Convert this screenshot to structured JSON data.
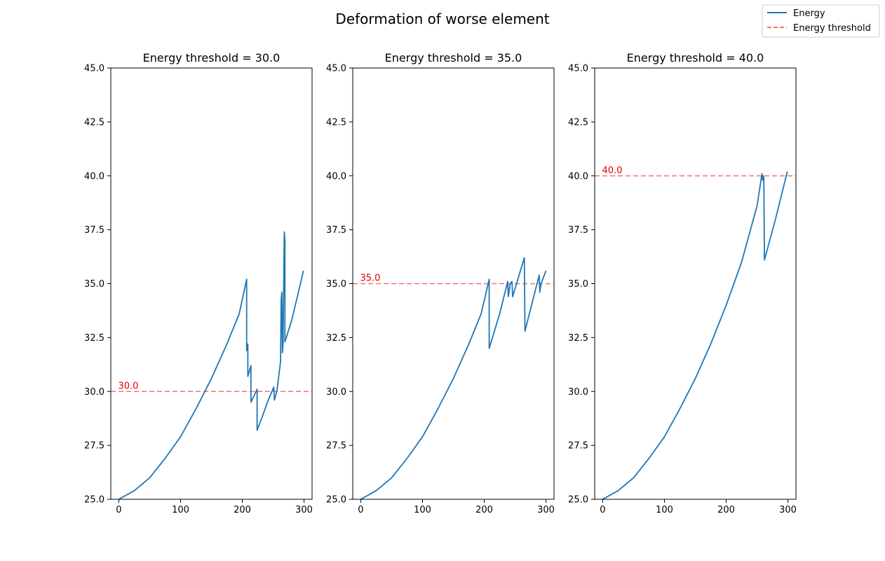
{
  "suptitle": "Deformation of worse element",
  "legend": {
    "placement": "top-right",
    "entries": [
      {
        "label": "Energy",
        "color": "#1f77b4",
        "style": "solid"
      },
      {
        "label": "Energy threshold",
        "color": "#ff6f6f",
        "style": "dashed"
      }
    ]
  },
  "chart_data": [
    {
      "type": "line",
      "title": "Energy threshold = 30.0",
      "xlim": [
        -13,
        313
      ],
      "ylim": [
        25.0,
        45.0
      ],
      "xticks": [
        0,
        100,
        200,
        300
      ],
      "yticks": [
        25.0,
        27.5,
        30.0,
        32.5,
        35.0,
        37.5,
        40.0,
        42.5,
        45.0
      ],
      "grid": false,
      "threshold": {
        "value": 30.0,
        "label": "30.0",
        "color": "#ff6f6f"
      },
      "series": [
        {
          "color": "#1f77b4",
          "points": [
            [
              0,
              25.0
            ],
            [
              25,
              25.4
            ],
            [
              50,
              26.0
            ],
            [
              75,
              26.9
            ],
            [
              100,
              27.9
            ],
            [
              125,
              29.2
            ],
            [
              150,
              30.6
            ],
            [
              175,
              32.2
            ],
            [
              195,
              33.6
            ],
            [
              207,
              35.2
            ],
            [
              207,
              31.9
            ],
            [
              209,
              32.2
            ],
            [
              209,
              30.7
            ],
            [
              214,
              31.2
            ],
            [
              214,
              29.5
            ],
            [
              224,
              30.1
            ],
            [
              224,
              28.2
            ],
            [
              232,
              28.8
            ],
            [
              242,
              29.6
            ],
            [
              251,
              30.2
            ],
            [
              252,
              29.6
            ],
            [
              256,
              30.0
            ],
            [
              262,
              31.4
            ],
            [
              263,
              34.3
            ],
            [
              264,
              34.6
            ],
            [
              265,
              31.8
            ],
            [
              266,
              32.2
            ],
            [
              268,
              37.4
            ],
            [
              269,
              37.0
            ],
            [
              269,
              32.3
            ],
            [
              280,
              33.3
            ],
            [
              290,
              34.5
            ],
            [
              299,
              35.6
            ]
          ]
        }
      ]
    },
    {
      "type": "line",
      "title": "Energy threshold = 35.0",
      "xlim": [
        -13,
        313
      ],
      "ylim": [
        25.0,
        45.0
      ],
      "xticks": [
        0,
        100,
        200,
        300
      ],
      "yticks": [
        25.0,
        27.5,
        30.0,
        32.5,
        35.0,
        37.5,
        40.0,
        42.5,
        45.0
      ],
      "grid": false,
      "threshold": {
        "value": 35.0,
        "label": "35.0",
        "color": "#ff6f6f"
      },
      "series": [
        {
          "color": "#1f77b4",
          "points": [
            [
              0,
              25.0
            ],
            [
              25,
              25.4
            ],
            [
              50,
              26.0
            ],
            [
              75,
              26.9
            ],
            [
              100,
              27.9
            ],
            [
              125,
              29.2
            ],
            [
              150,
              30.6
            ],
            [
              175,
              32.2
            ],
            [
              195,
              33.6
            ],
            [
              208,
              35.2
            ],
            [
              208,
              32.0
            ],
            [
              225,
              33.6
            ],
            [
              238,
              35.1
            ],
            [
              239,
              34.4
            ],
            [
              242,
              35.0
            ],
            [
              245,
              35.1
            ],
            [
              246,
              34.4
            ],
            [
              265,
              36.2
            ],
            [
              266,
              32.8
            ],
            [
              289,
              35.4
            ],
            [
              290,
              34.6
            ],
            [
              292,
              35.0
            ],
            [
              300,
              35.6
            ]
          ]
        }
      ]
    },
    {
      "type": "line",
      "title": "Energy threshold = 40.0",
      "xlim": [
        -13,
        313
      ],
      "ylim": [
        25.0,
        45.0
      ],
      "xticks": [
        0,
        100,
        200,
        300
      ],
      "yticks": [
        25.0,
        27.5,
        30.0,
        32.5,
        35.0,
        37.5,
        40.0,
        42.5,
        45.0
      ],
      "grid": false,
      "threshold": {
        "value": 40.0,
        "label": "40.0",
        "color": "#ff6f6f"
      },
      "series": [
        {
          "color": "#1f77b4",
          "points": [
            [
              0,
              25.0
            ],
            [
              25,
              25.4
            ],
            [
              50,
              26.0
            ],
            [
              75,
              26.9
            ],
            [
              100,
              27.9
            ],
            [
              125,
              29.2
            ],
            [
              150,
              30.6
            ],
            [
              175,
              32.2
            ],
            [
              200,
              34.0
            ],
            [
              225,
              36.0
            ],
            [
              250,
              38.6
            ],
            [
              258,
              40.1
            ],
            [
              259,
              39.8
            ],
            [
              260,
              40.0
            ],
            [
              261,
              39.9
            ],
            [
              262,
              36.1
            ],
            [
              280,
              38.0
            ],
            [
              299,
              40.2
            ]
          ]
        }
      ]
    }
  ]
}
